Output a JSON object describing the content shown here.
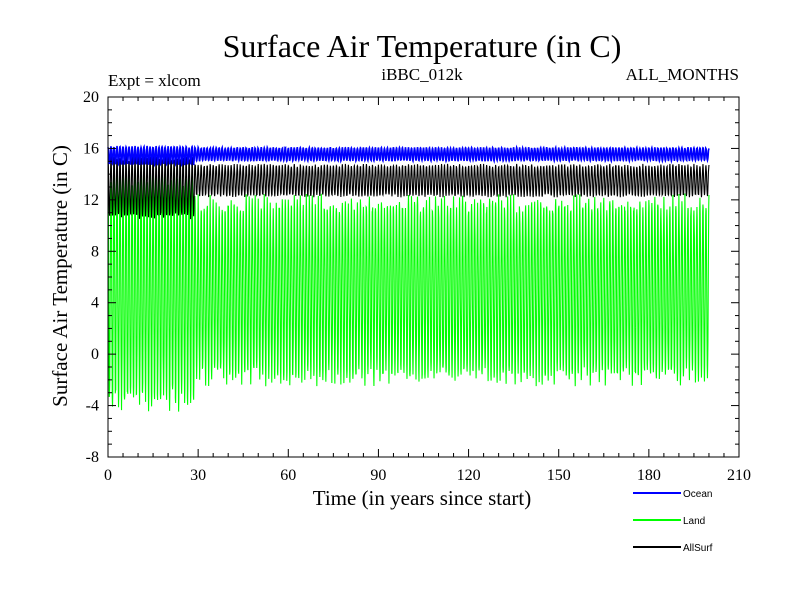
{
  "chart_data": {
    "type": "line",
    "title": "Surface Air Temperature (in C)",
    "annotations": {
      "left": "Expt = xlcom",
      "center": "iBBC_012k",
      "right": "ALL_MONTHS"
    },
    "xlabel": "Time (in years since start)",
    "ylabel": "Surface Air Temperature (in C)",
    "xlim": [
      0,
      210
    ],
    "ylim": [
      -8,
      20
    ],
    "x_ticks": [
      "0",
      "30",
      "60",
      "90",
      "120",
      "150",
      "180",
      "210"
    ],
    "y_ticks": [
      "-8",
      "-4",
      "0",
      "4",
      "8",
      "12",
      "16",
      "20"
    ],
    "time_span_years": [
      0,
      200
    ],
    "regime_change_year": 29,
    "legend_position": "bottom-right",
    "series": [
      {
        "name": "Ocean",
        "color": "#0000ff",
        "description": "monthly seasonal cycle",
        "phase_1": {
          "years": [
            0,
            29
          ],
          "min": 14.7,
          "max": 16.2
        },
        "phase_2": {
          "years": [
            29,
            200
          ],
          "min": 15.0,
          "max": 16.1
        }
      },
      {
        "name": "Land",
        "color": "#00ff00",
        "description": "monthly seasonal cycle",
        "phase_1": {
          "years": [
            0,
            29
          ],
          "min": -4.6,
          "max": 14.8
        },
        "phase_2": {
          "years": [
            29,
            200
          ],
          "min": -2.5,
          "max": 12.5
        }
      },
      {
        "name": "AllSurf",
        "color": "#000000",
        "description": "monthly seasonal cycle",
        "phase_1": {
          "years": [
            0,
            29
          ],
          "min": 10.5,
          "max": 15.5
        },
        "phase_2": {
          "years": [
            29,
            200
          ],
          "min": 12.2,
          "max": 14.8
        }
      }
    ]
  }
}
